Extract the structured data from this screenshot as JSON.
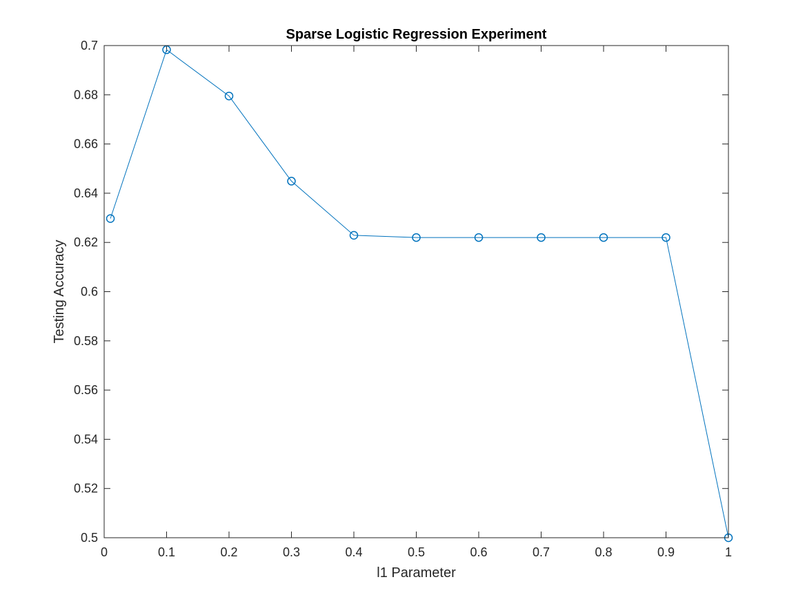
{
  "chart_data": {
    "type": "line",
    "title": "Sparse Logistic Regression Experiment",
    "xlabel": "l1 Parameter",
    "ylabel": "Testing Accuracy",
    "xlim": [
      0,
      1
    ],
    "ylim": [
      0.5,
      0.7
    ],
    "xticks": [
      0,
      0.1,
      0.2,
      0.3,
      0.4,
      0.5,
      0.6,
      0.7,
      0.8,
      0.9,
      1
    ],
    "xtick_labels": [
      "0",
      "0.1",
      "0.2",
      "0.3",
      "0.4",
      "0.5",
      "0.6",
      "0.7",
      "0.8",
      "0.9",
      "1"
    ],
    "yticks": [
      0.5,
      0.52,
      0.54,
      0.56,
      0.58,
      0.6,
      0.62,
      0.64,
      0.66,
      0.68,
      0.7
    ],
    "ytick_labels": [
      "0.5",
      "0.52",
      "0.54",
      "0.56",
      "0.58",
      "0.6",
      "0.62",
      "0.64",
      "0.66",
      "0.68",
      "0.7"
    ],
    "grid": false,
    "marker": "circle",
    "line_color": "#0072BD",
    "series": [
      {
        "x": [
          0.01,
          0.1,
          0.2,
          0.3,
          0.4,
          0.5,
          0.6,
          0.7,
          0.8,
          0.9,
          1
        ],
        "y": [
          0.6297,
          0.6983,
          0.6795,
          0.6449,
          0.6229,
          0.622,
          0.622,
          0.622,
          0.622,
          0.622,
          0.5
        ]
      }
    ]
  }
}
